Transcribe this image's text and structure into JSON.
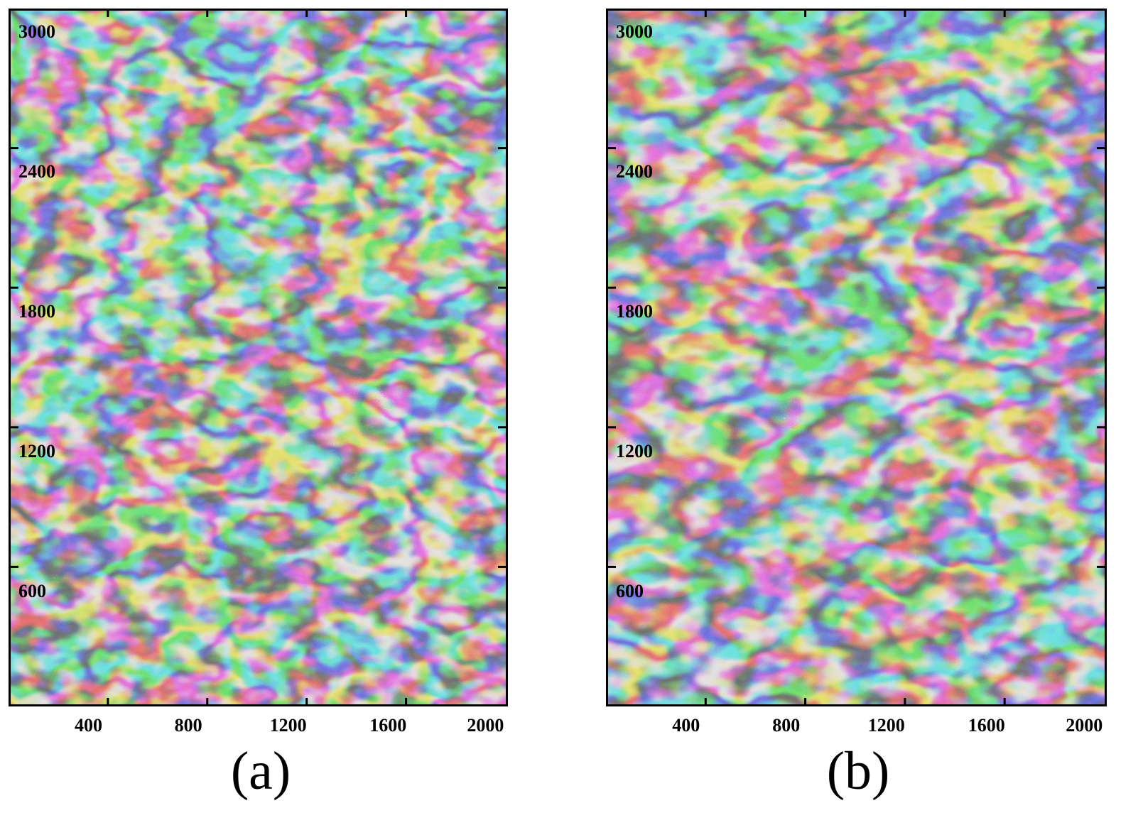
{
  "panels": [
    {
      "caption": "(a)",
      "x_ticks": [
        "400",
        "800",
        "1200",
        "1600",
        "2000"
      ],
      "y_ticks": [
        "3000",
        "2400",
        "1800",
        "1200",
        "600"
      ],
      "content": "interferogram-fringe-image"
    },
    {
      "caption": "(b)",
      "x_ticks": [
        "400",
        "800",
        "1200",
        "1600",
        "2000"
      ],
      "y_ticks": [
        "3000",
        "2400",
        "1800",
        "1200",
        "600"
      ],
      "content": "interferogram-fringe-image"
    }
  ],
  "colormap": [
    "#2a3a9e",
    "#2f6fd0",
    "#3fb6d6",
    "#7fd08a",
    "#d8d24a",
    "#e9912f",
    "#b8442a",
    "#6a2a6e"
  ]
}
